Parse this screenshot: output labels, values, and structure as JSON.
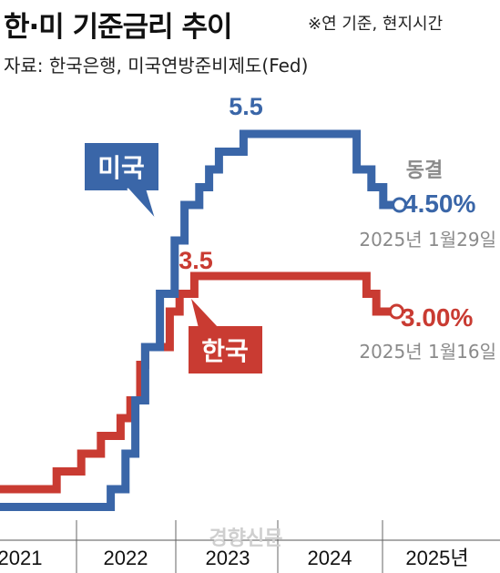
{
  "header": {
    "title": "한·미 기준금리 추이",
    "note": "※연 기준, 현지시간",
    "source": "자료: 한국은행, 미국연방준비제도(Fed)"
  },
  "chart_data": {
    "type": "line",
    "title": "한·미 기준금리 추이",
    "xlabel": "",
    "ylabel": "",
    "x_ticks": [
      "2021",
      "2022",
      "2023",
      "2024",
      "2025년"
    ],
    "ylim": [
      0,
      6
    ],
    "series": [
      {
        "name": "미국",
        "color": "#3a66a8",
        "points": [
          [
            2021.0,
            0.25
          ],
          [
            2022.2,
            0.5
          ],
          [
            2022.35,
            1.0
          ],
          [
            2022.45,
            1.75
          ],
          [
            2022.55,
            2.5
          ],
          [
            2022.7,
            3.25
          ],
          [
            2022.85,
            4.0
          ],
          [
            2022.95,
            4.5
          ],
          [
            2023.1,
            4.75
          ],
          [
            2023.2,
            5.0
          ],
          [
            2023.3,
            5.25
          ],
          [
            2023.55,
            5.5
          ],
          [
            2024.7,
            5.0
          ],
          [
            2024.85,
            4.75
          ],
          [
            2024.97,
            4.5
          ],
          [
            2025.08,
            4.5
          ]
        ],
        "peak_label": "5.5",
        "end_label": "4.50%",
        "status_label": "동결",
        "date_label": "2025년 1월29일",
        "tag_label": "미국"
      },
      {
        "name": "한국",
        "color": "#c93b32",
        "points": [
          [
            2021.0,
            0.5
          ],
          [
            2021.65,
            0.75
          ],
          [
            2021.9,
            1.0
          ],
          [
            2022.1,
            1.25
          ],
          [
            2022.3,
            1.5
          ],
          [
            2022.4,
            1.75
          ],
          [
            2022.5,
            2.25
          ],
          [
            2022.55,
            2.5
          ],
          [
            2022.8,
            3.0
          ],
          [
            2022.9,
            3.25
          ],
          [
            2023.05,
            3.5
          ],
          [
            2024.8,
            3.25
          ],
          [
            2024.9,
            3.0
          ],
          [
            2025.05,
            3.0
          ]
        ],
        "peak_label": "3.5",
        "end_label": "3.00%",
        "date_label": "2025년 1월16일",
        "tag_label": "한국"
      }
    ]
  },
  "watermark": "경향신문"
}
